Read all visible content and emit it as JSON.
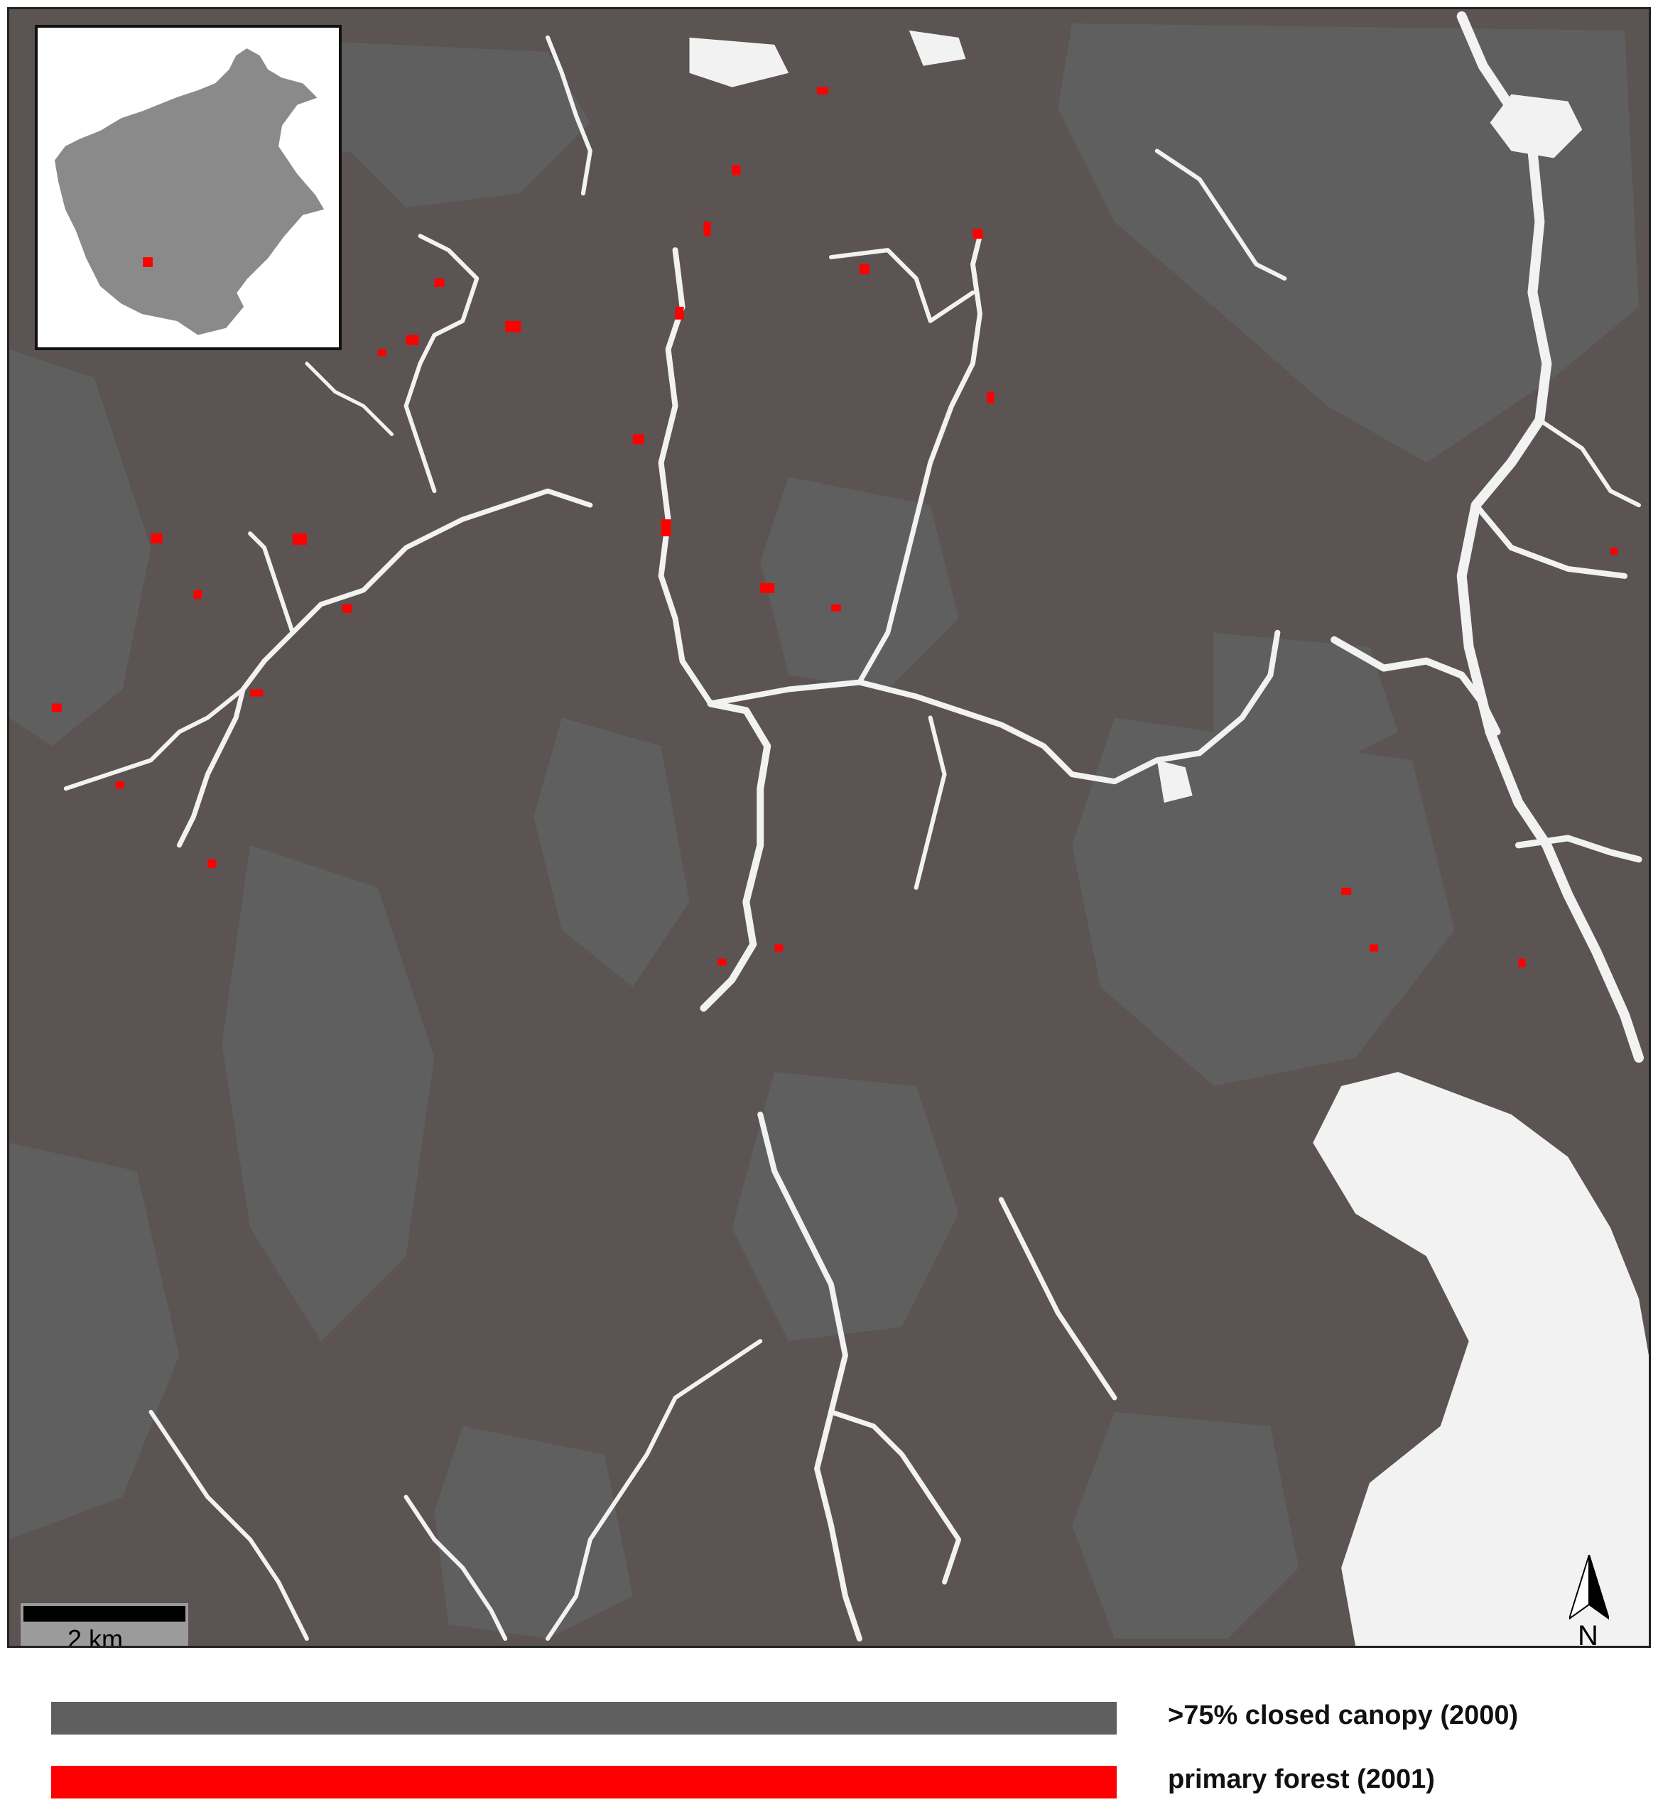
{
  "colors": {
    "background_forest": "#5c5353",
    "closed_canopy": "#5f5f5f",
    "primary_forest": "#ff0000",
    "non_forest": "#f2f2f2",
    "inset_land": "#8a8a8a"
  },
  "scale_bar": {
    "label": "2 km"
  },
  "north_arrow": {
    "label": "N",
    "icon": "north-arrow-icon"
  },
  "legend": {
    "items": [
      {
        "label": ">75% closed canopy (2000)",
        "color": "#5f5f5f"
      },
      {
        "label": "primary forest (2001)",
        "color": "#ff0000"
      }
    ]
  },
  "inset": {
    "marker_color": "#ff0000"
  }
}
